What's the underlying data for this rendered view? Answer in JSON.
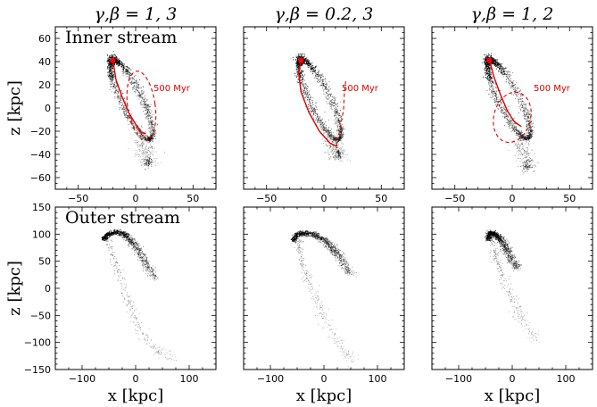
{
  "figure": {
    "colors": {
      "particles": "#000000",
      "orbit": "#e00000",
      "marker": "#ff0000",
      "frame": "#000000"
    },
    "xlabel": "x [kpc]",
    "ylabel": "z [kpc]"
  },
  "chart_data": [
    {
      "type": "scatter",
      "row": 0,
      "col": 0,
      "title": "γ,β = 1, 3",
      "note": "Inner stream",
      "annotation": "500 Myr",
      "xlim": [
        -70,
        70
      ],
      "ylim": [
        -70,
        70
      ],
      "xticks": [
        -50,
        0,
        50
      ],
      "yticks": [
        -60,
        -40,
        -20,
        0,
        20,
        40,
        60
      ],
      "show_xticklabels": true,
      "show_yticklabels": true,
      "show_xlabel": false,
      "show_ylabel": true,
      "stream": {
        "kind": "inner",
        "ax": -20,
        "ay": 41,
        "bx": 13,
        "by": -27,
        "width": 9,
        "tail": [
          11,
          -47
        ]
      },
      "progenitor": [
        -20,
        41
      ],
      "orbit_solid": [
        [
          -20,
          42
        ],
        [
          -17,
          24
        ],
        [
          -12,
          10
        ],
        [
          -6,
          -4
        ],
        [
          0,
          -14
        ],
        [
          5,
          -21
        ],
        [
          9,
          -22
        ]
      ],
      "orbit_dashed_ellipse": {
        "cx": 5,
        "cy": 2,
        "rx": 12,
        "ry": 30,
        "rot": -8
      }
    },
    {
      "type": "scatter",
      "row": 0,
      "col": 1,
      "title": "γ,β = 0.2, 3",
      "note": "",
      "annotation": "500 Myr",
      "xlim": [
        -70,
        70
      ],
      "ylim": [
        -70,
        70
      ],
      "xticks": [
        -50,
        0,
        50
      ],
      "yticks": [
        -60,
        -40,
        -20,
        0,
        20,
        40,
        60
      ],
      "show_xticklabels": true,
      "show_yticklabels": false,
      "show_xlabel": false,
      "show_ylabel": false,
      "stream": {
        "kind": "inner",
        "ax": -20,
        "ay": 41,
        "bx": 13,
        "by": -27,
        "width": 9,
        "tail": [
          12,
          -40
        ]
      },
      "progenitor": [
        -20,
        41
      ],
      "orbit_solid": [
        [
          -20,
          42
        ],
        [
          -22,
          30
        ],
        [
          -20,
          14
        ],
        [
          -13,
          -4
        ],
        [
          -4,
          -20
        ],
        [
          5,
          -30
        ],
        [
          11,
          -33
        ]
      ],
      "orbit_dashed_line": [
        [
          11,
          -33
        ],
        [
          14,
          -18
        ],
        [
          17,
          -2
        ],
        [
          18,
          15
        ],
        [
          19,
          23
        ]
      ]
    },
    {
      "type": "scatter",
      "row": 0,
      "col": 2,
      "title": "γ,β = 1, 2",
      "note": "",
      "annotation": "500 Myr",
      "xlim": [
        -70,
        70
      ],
      "ylim": [
        -70,
        70
      ],
      "xticks": [
        -50,
        0,
        50
      ],
      "yticks": [
        -60,
        -40,
        -20,
        0,
        20,
        40,
        60
      ],
      "show_xticklabels": true,
      "show_yticklabels": false,
      "show_xlabel": false,
      "show_ylabel": false,
      "stream": {
        "kind": "inner",
        "ax": -20,
        "ay": 41,
        "bx": 14,
        "by": -26,
        "width": 9,
        "tail": [
          13,
          -50
        ]
      },
      "progenitor": [
        -20,
        41
      ],
      "orbit_solid": [
        [
          -20,
          42
        ],
        [
          -16,
          27
        ],
        [
          -10,
          11
        ],
        [
          -4,
          -3
        ],
        [
          2,
          -12
        ],
        [
          8,
          -16
        ]
      ],
      "orbit_dashed_ellipse": {
        "cx": 0,
        "cy": -8,
        "rx": 16,
        "ry": 22,
        "rot": 15
      }
    },
    {
      "type": "scatter",
      "row": 1,
      "col": 0,
      "title": "",
      "note": "Outer stream",
      "annotation": "",
      "xlim": [
        -150,
        150
      ],
      "ylim": [
        -150,
        150
      ],
      "xticks": [
        -100,
        0,
        100
      ],
      "yticks": [
        -150,
        -100,
        -50,
        0,
        50,
        100,
        150
      ],
      "show_xticklabels": true,
      "show_yticklabels": true,
      "show_xlabel": true,
      "show_ylabel": true,
      "stream": {
        "kind": "outer",
        "arc": [
          [
            -60,
            90
          ],
          [
            -50,
            100
          ],
          [
            -35,
            104
          ],
          [
            -20,
            99
          ],
          [
            -8,
            88
          ],
          [
            5,
            70
          ],
          [
            20,
            45
          ],
          [
            35,
            18
          ]
        ],
        "tail": [
          [
            -50,
            92
          ],
          [
            -35,
            40
          ],
          [
            -15,
            -20
          ],
          [
            10,
            -80
          ],
          [
            40,
            -115
          ],
          [
            70,
            -130
          ]
        ]
      }
    },
    {
      "type": "scatter",
      "row": 1,
      "col": 1,
      "title": "",
      "note": "",
      "annotation": "",
      "xlim": [
        -150,
        150
      ],
      "ylim": [
        -150,
        150
      ],
      "xticks": [
        -100,
        0,
        100
      ],
      "yticks": [
        -150,
        -100,
        -50,
        0,
        50,
        100,
        150
      ],
      "show_xticklabels": true,
      "show_yticklabels": false,
      "show_xlabel": true,
      "show_ylabel": false,
      "stream": {
        "kind": "outer",
        "arc": [
          [
            -58,
            88
          ],
          [
            -48,
            100
          ],
          [
            -32,
            102
          ],
          [
            -15,
            98
          ],
          [
            5,
            86
          ],
          [
            20,
            70
          ],
          [
            35,
            52
          ],
          [
            50,
            25
          ]
        ],
        "tail": [
          [
            -50,
            92
          ],
          [
            -40,
            45
          ],
          [
            -20,
            -5
          ],
          [
            0,
            -55
          ],
          [
            25,
            -100
          ],
          [
            55,
            -135
          ]
        ]
      }
    },
    {
      "type": "scatter",
      "row": 1,
      "col": 2,
      "title": "",
      "note": "",
      "annotation": "",
      "xlim": [
        -150,
        150
      ],
      "ylim": [
        -150,
        150
      ],
      "xticks": [
        -100,
        0,
        100
      ],
      "yticks": [
        -150,
        -100,
        -50,
        0,
        50,
        100,
        150
      ],
      "show_xticklabels": true,
      "show_yticklabels": false,
      "show_xlabel": true,
      "show_ylabel": false,
      "stream": {
        "kind": "outer",
        "arc": [
          [
            -45,
            90
          ],
          [
            -42,
            102
          ],
          [
            -32,
            100
          ],
          [
            -22,
            90
          ],
          [
            -12,
            75
          ],
          [
            -2,
            55
          ],
          [
            10,
            35
          ]
        ],
        "tail": [
          [
            -40,
            95
          ],
          [
            -30,
            55
          ],
          [
            -15,
            15
          ],
          [
            5,
            -30
          ],
          [
            25,
            -70
          ],
          [
            45,
            -95
          ]
        ]
      }
    }
  ]
}
